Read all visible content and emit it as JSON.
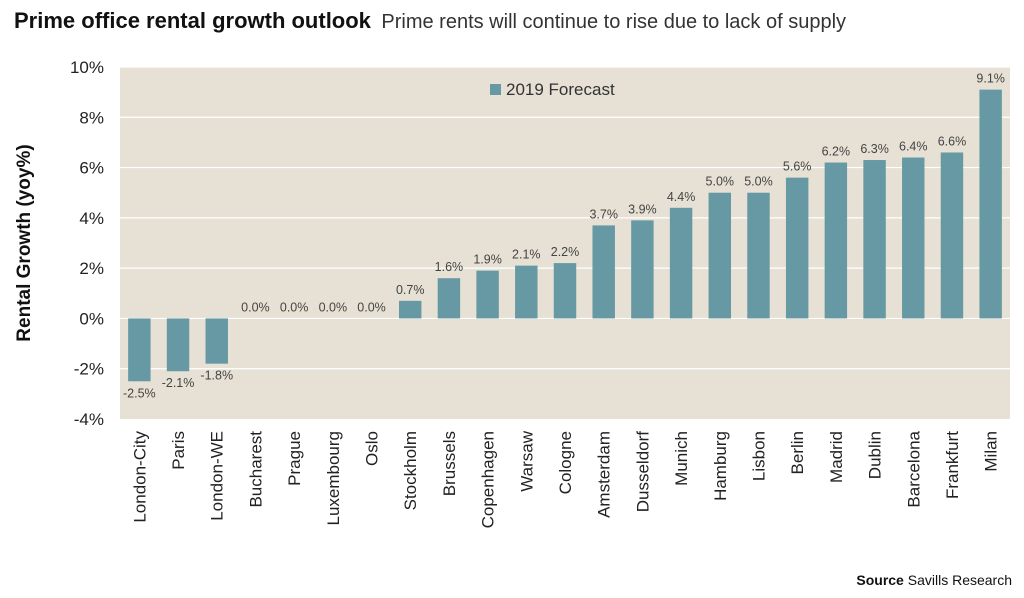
{
  "header": {
    "title": "Prime office rental growth outlook",
    "subtitle": "Prime rents will continue to rise due to lack of supply"
  },
  "source": {
    "label": "Source",
    "text": "Savills Research"
  },
  "colors": {
    "plot_background": "#e6e1d4",
    "bar": "#6699a3",
    "grid": "#ffffff"
  },
  "chart_data": {
    "type": "bar",
    "ylabel": "Rental Growth (yoy%)",
    "xlabel": "",
    "ylim": [
      -4,
      10
    ],
    "yticks": [
      -4,
      -2,
      0,
      2,
      4,
      6,
      8,
      10
    ],
    "ytick_labels": [
      "-4%",
      "-2%",
      "0%",
      "2%",
      "4%",
      "6%",
      "8%",
      "10%"
    ],
    "grid": true,
    "legend_position": "top-center",
    "categories": [
      "London-City",
      "Paris",
      "London-WE",
      "Bucharest",
      "Prague",
      "Luxembourg",
      "Oslo",
      "Stockholm",
      "Brussels",
      "Copenhagen",
      "Warsaw",
      "Cologne",
      "Amsterdam",
      "Dusseldorf",
      "Munich",
      "Hamburg",
      "Lisbon",
      "Berlin",
      "Madrid",
      "Dublin",
      "Barcelona",
      "Frankfurt",
      "Milan"
    ],
    "series": [
      {
        "name": "2019 Forecast",
        "values": [
          -2.5,
          -2.1,
          -1.8,
          0.0,
          0.0,
          0.0,
          0.0,
          0.7,
          1.6,
          1.9,
          2.1,
          2.2,
          3.7,
          3.9,
          4.4,
          5.0,
          5.0,
          5.6,
          6.2,
          6.3,
          6.4,
          6.6,
          9.1
        ],
        "data_labels": [
          "-2.5%",
          "-2.1%",
          "-1.8%",
          "0.0%",
          "0.0%",
          "0.0%",
          "0.0%",
          "0.7%",
          "1.6%",
          "1.9%",
          "2.1%",
          "2.2%",
          "3.7%",
          "3.9%",
          "4.4%",
          "5.0%",
          "5.0%",
          "5.6%",
          "6.2%",
          "6.3%",
          "6.4%",
          "6.6%",
          "9.1%"
        ]
      }
    ]
  }
}
